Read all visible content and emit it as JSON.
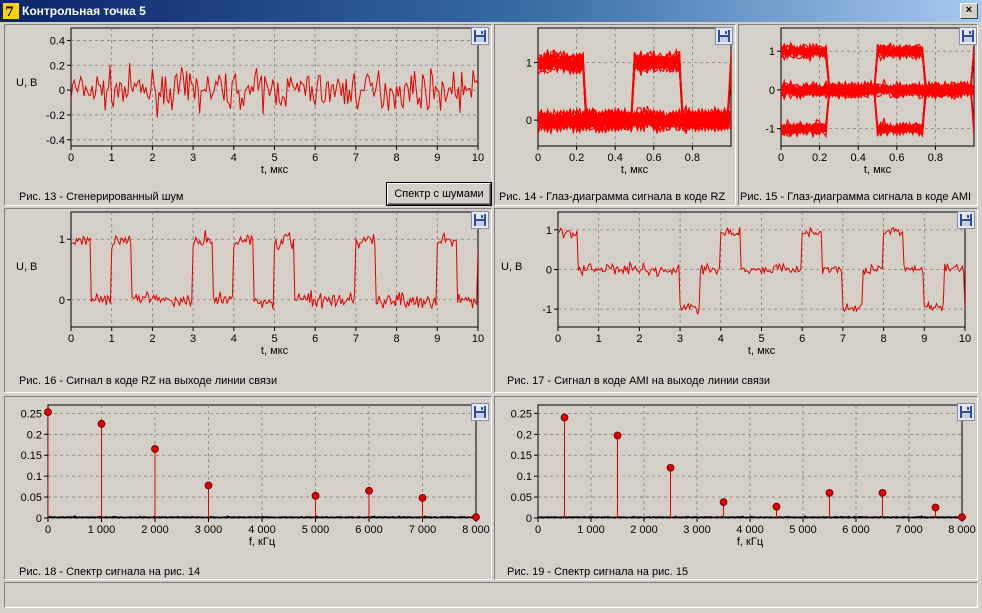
{
  "window": {
    "title": "Контрольная точка 5",
    "close_label": "×"
  },
  "buttons": {
    "spectrum_noise": "Спектр с шумами"
  },
  "captions": {
    "fig13": "Рис. 13 - Сгенерированный шум",
    "fig14": "Рис. 14 - Глаз-диаграмма сигнала в коде RZ",
    "fig15": "Рис. 15 - Глаз-диаграмма сигнала в коде AMI",
    "fig16": "Рис. 16 - Сигнал в коде RZ на выходе линии связи",
    "fig17": "Рис. 17 - Сигнал в коде AMI на выходе линии связи",
    "fig18": "Рис. 18 - Спектр сигнала на рис. 14",
    "fig19": "Рис. 19 - Спектр сигнала на рис. 15"
  },
  "chart_data": [
    {
      "id": "noise",
      "type": "line",
      "xlabel": "t, мкс",
      "ylabel": "U, В",
      "xlim": [
        0,
        10
      ],
      "ylim": [
        -0.45,
        0.5
      ],
      "xticks": [
        "0",
        "1",
        "2",
        "3",
        "4",
        "5",
        "6",
        "7",
        "8",
        "9",
        "10"
      ],
      "xtick_values": [
        0,
        1,
        2,
        3,
        4,
        5,
        6,
        7,
        8,
        9,
        10
      ],
      "yticks": [
        "-0.4",
        "-0.2",
        "0",
        "0.2",
        "0.4"
      ],
      "ytick_values": [
        -0.4,
        -0.2,
        0,
        0.2,
        0.4
      ],
      "series": [
        {
          "style": "noise",
          "amplitude": 0.22,
          "points": 250
        }
      ]
    },
    {
      "id": "eye_rz",
      "type": "area",
      "xlabel": "t, мкс",
      "ylabel": "",
      "xlim": [
        0,
        1
      ],
      "ylim": [
        -0.45,
        1.6
      ],
      "xticks": [
        "0",
        "0.2",
        "0.4",
        "0.6",
        "0.8"
      ],
      "xtick_values": [
        0,
        0.2,
        0.4,
        0.6,
        0.8
      ],
      "yticks": [
        "0",
        "1"
      ],
      "ytick_values": [
        0,
        1
      ],
      "series": [
        {
          "style": "eye-rz"
        }
      ]
    },
    {
      "id": "eye_ami",
      "type": "area",
      "xlabel": "t, мкс",
      "ylabel": "",
      "xlim": [
        0,
        1
      ],
      "ylim": [
        -1.45,
        1.6
      ],
      "xticks": [
        "0",
        "0.2",
        "0.4",
        "0.6",
        "0.8"
      ],
      "xtick_values": [
        0,
        0.2,
        0.4,
        0.6,
        0.8
      ],
      "yticks": [
        "-1",
        "0",
        "1"
      ],
      "ytick_values": [
        -1,
        0,
        1
      ],
      "series": [
        {
          "style": "eye-ami"
        }
      ]
    },
    {
      "id": "rz_out",
      "type": "line",
      "xlabel": "t, мкс",
      "ylabel": "U, В",
      "xlim": [
        0,
        10
      ],
      "ylim": [
        -0.45,
        1.45
      ],
      "xticks": [
        "0",
        "1",
        "2",
        "3",
        "4",
        "5",
        "6",
        "7",
        "8",
        "9",
        "10"
      ],
      "xtick_values": [
        0,
        1,
        2,
        3,
        4,
        5,
        6,
        7,
        8,
        9,
        10
      ],
      "yticks": [
        "0",
        "1"
      ],
      "ytick_values": [
        0,
        1
      ],
      "series": [
        {
          "style": "rz",
          "bits": [
            1,
            1,
            0,
            1,
            1,
            1,
            0,
            1,
            0,
            1
          ]
        }
      ]
    },
    {
      "id": "ami_out",
      "type": "line",
      "xlabel": "t, мкс",
      "ylabel": "U, В",
      "xlim": [
        0,
        10
      ],
      "ylim": [
        -1.45,
        1.45
      ],
      "xticks": [
        "0",
        "1",
        "2",
        "3",
        "4",
        "5",
        "6",
        "7",
        "8",
        "9",
        "10"
      ],
      "xtick_values": [
        0,
        1,
        2,
        3,
        4,
        5,
        6,
        7,
        8,
        9,
        10
      ],
      "yticks": [
        "-1",
        "0",
        "1"
      ],
      "ytick_values": [
        -1,
        0,
        1
      ],
      "series": [
        {
          "style": "ami",
          "levels": [
            1,
            0,
            0,
            -1,
            1,
            0,
            1,
            -1,
            1,
            -1
          ]
        }
      ]
    },
    {
      "id": "spec_rz",
      "type": "scatter",
      "xlabel": "f, кГц",
      "ylabel": "",
      "xlim": [
        0,
        8000
      ],
      "ylim": [
        0,
        0.27
      ],
      "xticks": [
        "0",
        "1 000",
        "2 000",
        "3 000",
        "4 000",
        "5 000",
        "6 000",
        "7 000",
        "8 000"
      ],
      "xtick_values": [
        0,
        1000,
        2000,
        3000,
        4000,
        5000,
        6000,
        7000,
        8000
      ],
      "yticks": [
        "0",
        "0.05",
        "0.1",
        "0.15",
        "0.2",
        "0.25"
      ],
      "ytick_values": [
        0,
        0.05,
        0.1,
        0.15,
        0.2,
        0.25
      ],
      "series": [
        {
          "style": "stem",
          "x": [
            0,
            1000,
            2000,
            3000,
            5000,
            6000,
            7000,
            8000
          ],
          "y": [
            0.253,
            0.225,
            0.165,
            0.078,
            0.053,
            0.065,
            0.048,
            0.002
          ]
        }
      ]
    },
    {
      "id": "spec_ami",
      "type": "scatter",
      "xlabel": "f, кГц",
      "ylabel": "",
      "xlim": [
        0,
        8000
      ],
      "ylim": [
        0,
        0.27
      ],
      "xticks": [
        "0",
        "1 000",
        "2 000",
        "3 000",
        "4 000",
        "5 000",
        "6 000",
        "7 000",
        "8 000"
      ],
      "xtick_values": [
        0,
        1000,
        2000,
        3000,
        4000,
        5000,
        6000,
        7000,
        8000
      ],
      "yticks": [
        "0",
        "0.05",
        "0.1",
        "0.15",
        "0.2",
        "0.25"
      ],
      "ytick_values": [
        0,
        0.05,
        0.1,
        0.15,
        0.2,
        0.25
      ],
      "series": [
        {
          "style": "stem",
          "x": [
            500,
            1500,
            2500,
            3500,
            4500,
            5500,
            6500,
            7500,
            8000
          ],
          "y": [
            0.24,
            0.197,
            0.12,
            0.038,
            0.027,
            0.06,
            0.06,
            0.025,
            0.002
          ]
        }
      ]
    }
  ]
}
